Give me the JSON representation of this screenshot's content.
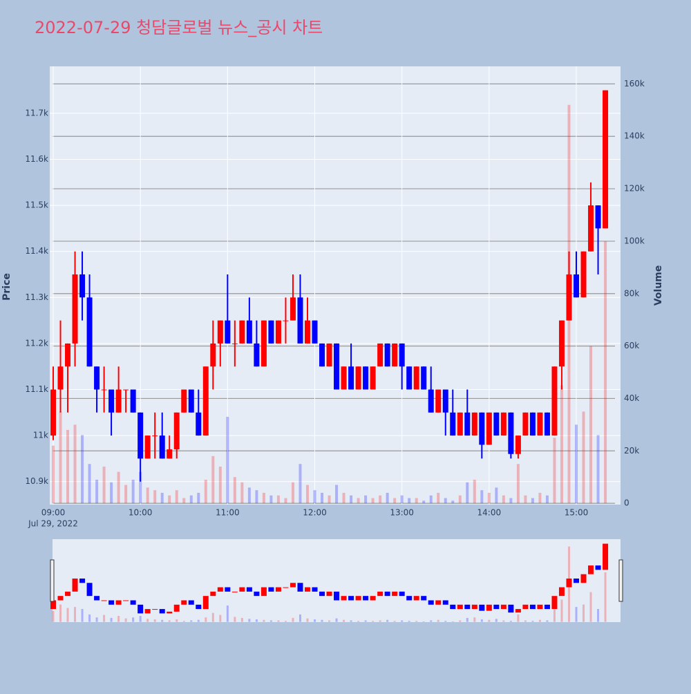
{
  "chart_data": {
    "type": "candlestick",
    "title": "2022-07-29 청담글로벌 뉴스_공시 차트",
    "y_title": "Price",
    "y2_title": "Volume",
    "x_date": "Jul 29, 2022",
    "x": [
      "09:00",
      "09:05",
      "09:10",
      "09:15",
      "09:20",
      "09:25",
      "09:30",
      "09:35",
      "09:40",
      "09:45",
      "09:50",
      "09:55",
      "10:00",
      "10:05",
      "10:10",
      "10:15",
      "10:20",
      "10:25",
      "10:30",
      "10:35",
      "10:40",
      "10:45",
      "10:50",
      "10:55",
      "11:00",
      "11:05",
      "11:10",
      "11:15",
      "11:20",
      "11:25",
      "11:30",
      "11:35",
      "11:40",
      "11:45",
      "11:50",
      "11:55",
      "12:00",
      "12:05",
      "12:10",
      "12:15",
      "12:20",
      "12:25",
      "12:30",
      "12:35",
      "12:40",
      "12:45",
      "12:50",
      "12:55",
      "13:00",
      "13:05",
      "13:10",
      "13:15",
      "13:20",
      "13:25",
      "13:30",
      "13:35",
      "13:40",
      "13:45",
      "13:50",
      "13:55",
      "14:00",
      "14:05",
      "14:10",
      "14:15",
      "14:20",
      "14:25",
      "14:30",
      "14:35",
      "14:40",
      "14:45",
      "14:50",
      "14:55",
      "15:00",
      "15:05",
      "15:10",
      "15:15",
      "15:20"
    ],
    "open": [
      11000,
      11100,
      11150,
      11200,
      11350,
      11300,
      11150,
      11100,
      11100,
      11050,
      11100,
      11100,
      11050,
      10950,
      11000,
      11000,
      10950,
      10970,
      11050,
      11100,
      11050,
      11000,
      11150,
      11200,
      11250,
      11200,
      11200,
      11250,
      11200,
      11150,
      11250,
      11200,
      11250,
      11250,
      11300,
      11200,
      11250,
      11200,
      11150,
      11200,
      11100,
      11150,
      11100,
      11150,
      11100,
      11150,
      11200,
      11150,
      11200,
      11150,
      11100,
      11150,
      11100,
      11050,
      11100,
      11050,
      11000,
      11050,
      11000,
      11050,
      10980,
      11050,
      11000,
      11050,
      10960,
      11000,
      11050,
      11000,
      11050,
      11000,
      11150,
      11250,
      11350,
      11300,
      11400,
      11500,
      11450
    ],
    "high": [
      11150,
      11250,
      11200,
      11400,
      11400,
      11350,
      11150,
      11150,
      11100,
      11150,
      11100,
      11100,
      11050,
      11000,
      11050,
      11050,
      11000,
      11050,
      11100,
      11100,
      11100,
      11150,
      11250,
      11250,
      11350,
      11250,
      11250,
      11300,
      11250,
      11250,
      11250,
      11250,
      11300,
      11350,
      11350,
      11300,
      11250,
      11200,
      11200,
      11200,
      11150,
      11200,
      11150,
      11150,
      11150,
      11200,
      11200,
      11200,
      11200,
      11150,
      11150,
      11150,
      11150,
      11100,
      11100,
      11100,
      11050,
      11100,
      11050,
      11050,
      11050,
      11050,
      11050,
      11050,
      11000,
      11050,
      11050,
      11050,
      11050,
      11150,
      11250,
      11400,
      11400,
      11400,
      11550,
      11500,
      11750
    ],
    "low": [
      10990,
      11050,
      11050,
      11150,
      11250,
      11150,
      11050,
      11050,
      11000,
      11050,
      11050,
      11050,
      10900,
      10950,
      10950,
      10950,
      10950,
      10950,
      11050,
      11050,
      11000,
      11000,
      11100,
      11150,
      11200,
      11150,
      11200,
      11200,
      11150,
      11150,
      11200,
      11200,
      11200,
      11250,
      11200,
      11200,
      11200,
      11150,
      11150,
      11100,
      11100,
      11100,
      11100,
      11100,
      11100,
      11150,
      11150,
      11150,
      11100,
      11100,
      11100,
      11100,
      11050,
      11050,
      11000,
      11000,
      11000,
      11000,
      11000,
      10950,
      10980,
      11000,
      11000,
      10950,
      10950,
      11000,
      11000,
      11000,
      11000,
      11000,
      11100,
      11250,
      11300,
      11300,
      11400,
      11350,
      11450
    ],
    "close": [
      11100,
      11150,
      11200,
      11350,
      11300,
      11150,
      11100,
      11100,
      11050,
      11100,
      11100,
      11050,
      10950,
      11000,
      11000,
      10950,
      10970,
      11050,
      11100,
      11050,
      11000,
      11150,
      11200,
      11250,
      11200,
      11200,
      11250,
      11200,
      11150,
      11250,
      11200,
      11250,
      11250,
      11300,
      11200,
      11250,
      11200,
      11150,
      11200,
      11100,
      11150,
      11100,
      11150,
      11100,
      11150,
      11200,
      11150,
      11200,
      11150,
      11100,
      11150,
      11100,
      11050,
      11100,
      11050,
      11000,
      11050,
      11000,
      11050,
      10980,
      11050,
      11000,
      11050,
      10960,
      11000,
      11050,
      11000,
      11050,
      11000,
      11150,
      11250,
      11350,
      11300,
      11400,
      11500,
      11450,
      11750
    ],
    "volume": [
      22000,
      35000,
      28000,
      30000,
      26000,
      15000,
      9000,
      14000,
      8000,
      12000,
      7000,
      9000,
      12000,
      6000,
      5000,
      4000,
      3000,
      5000,
      2000,
      3000,
      4000,
      9000,
      18000,
      14000,
      33000,
      10000,
      8000,
      6000,
      5000,
      4000,
      3000,
      3000,
      2000,
      8000,
      15000,
      7000,
      5000,
      4000,
      3000,
      7000,
      4000,
      3000,
      2000,
      3000,
      2000,
      3000,
      4000,
      2000,
      3000,
      2000,
      2000,
      1000,
      3000,
      4000,
      2000,
      1000,
      3000,
      8000,
      9000,
      5000,
      4000,
      6000,
      3000,
      2000,
      15000,
      3000,
      2000,
      4000,
      3000,
      25000,
      45000,
      152000,
      30000,
      35000,
      60000,
      26000,
      100000
    ],
    "increasing_color": "#ff0000",
    "decreasing_color": "#0000ff",
    "ylim": [
      10850,
      11802
    ],
    "yticks": [
      {
        "value": 10900,
        "label": "10.9k"
      },
      {
        "value": 11000,
        "label": "11k"
      },
      {
        "value": 11100,
        "label": "11.1k"
      },
      {
        "value": 11200,
        "label": "11.2k"
      },
      {
        "value": 11300,
        "label": "11.3k"
      },
      {
        "value": 11400,
        "label": "11.4k"
      },
      {
        "value": 11500,
        "label": "11.5k"
      },
      {
        "value": 11600,
        "label": "11.6k"
      },
      {
        "value": 11700,
        "label": "11.7k"
      }
    ],
    "y2lim": [
      -500,
      166700
    ],
    "y2ticks": [
      0,
      {
        "value": 20000,
        "label": "20k"
      },
      {
        "value": 40000,
        "label": "40k"
      },
      {
        "value": 60000,
        "label": "60k"
      },
      {
        "value": 80000,
        "label": "80k"
      },
      {
        "value": 100000,
        "label": "100k"
      },
      {
        "value": 120000,
        "label": "120k"
      },
      {
        "value": 140000,
        "label": "140k"
      },
      {
        "value": 160000,
        "label": "160k"
      }
    ],
    "xticks": [
      "09:00",
      "10:00",
      "11:00",
      "12:00",
      "13:00",
      "14:00",
      "15:00"
    ],
    "grid": true
  }
}
